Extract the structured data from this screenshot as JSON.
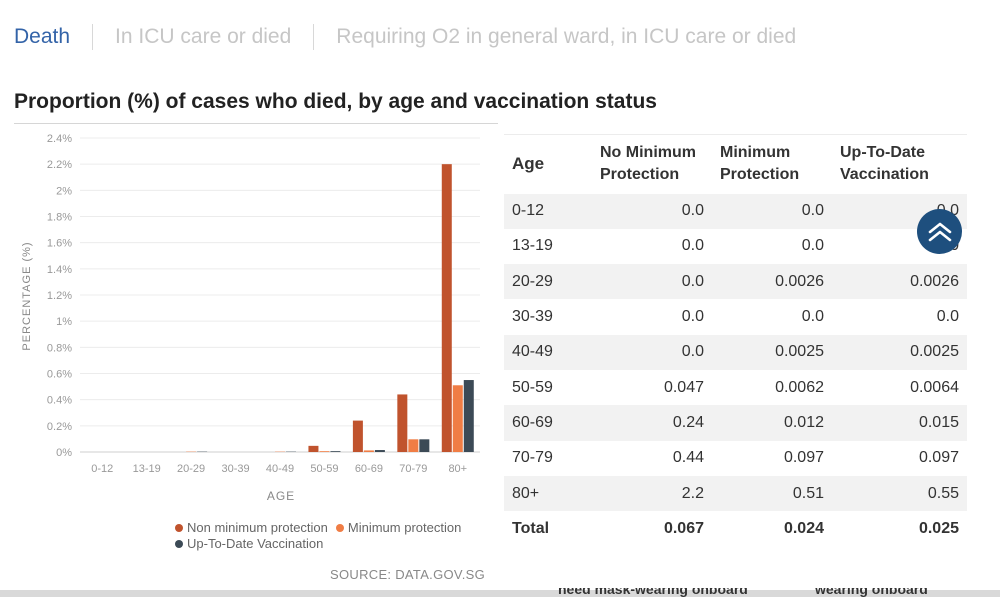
{
  "tabs": [
    {
      "label": "Death",
      "active": true
    },
    {
      "label": "In ICU care or died",
      "active": false
    },
    {
      "label": "Requiring O2 in general ward, in ICU care or died",
      "active": false
    }
  ],
  "title": "Proportion (%) of cases who died, by age and vaccination status",
  "chart_data": {
    "type": "bar",
    "xlabel": "AGE",
    "ylabel": "PERCENTAGE (%)",
    "categories": [
      "0-12",
      "13-19",
      "20-29",
      "30-39",
      "40-49",
      "50-59",
      "60-69",
      "70-79",
      "80+"
    ],
    "yticks": [
      "0%",
      "0.2%",
      "0.4%",
      "0.6%",
      "0.8%",
      "1%",
      "1.2%",
      "1.4%",
      "1.6%",
      "1.8%",
      "2%",
      "2.2%",
      "2.4%"
    ],
    "ylim": [
      0,
      2.4
    ],
    "grid": true,
    "legend_position": "bottom",
    "series": [
      {
        "name": "Non minimum protection",
        "color": "#c0532d",
        "values": [
          0.0,
          0.0,
          0.0,
          0.0,
          0.0,
          0.047,
          0.24,
          0.44,
          2.2
        ]
      },
      {
        "name": "Minimum protection",
        "color": "#f07d45",
        "values": [
          0.0,
          0.0,
          0.0026,
          0.0,
          0.0025,
          0.0062,
          0.012,
          0.097,
          0.51
        ]
      },
      {
        "name": "Up-To-Date Vaccination",
        "color": "#3c4a56",
        "values": [
          0.0,
          0.0,
          0.0026,
          0.0,
          0.0025,
          0.0064,
          0.015,
          0.097,
          0.55
        ]
      }
    ]
  },
  "legend": {
    "non_min": "Non minimum protection",
    "min": "Minimum protection",
    "utd": "Up-To-Date Vaccination"
  },
  "source": "SOURCE: DATA.GOV.SG",
  "table": {
    "headers": {
      "age": "Age",
      "no_min": "No Minimum Protection",
      "min": "Minimum Protection",
      "utd": "Up-To-Date Vaccination"
    },
    "rows": [
      {
        "age": "0-12",
        "no_min": "0.0",
        "min": "0.0",
        "utd": "0.0"
      },
      {
        "age": "13-19",
        "no_min": "0.0",
        "min": "0.0",
        "utd": "0.0"
      },
      {
        "age": "20-29",
        "no_min": "0.0",
        "min": "0.0026",
        "utd": "0.0026"
      },
      {
        "age": "30-39",
        "no_min": "0.0",
        "min": "0.0",
        "utd": "0.0"
      },
      {
        "age": "40-49",
        "no_min": "0.0",
        "min": "0.0025",
        "utd": "0.0025"
      },
      {
        "age": "50-59",
        "no_min": "0.047",
        "min": "0.0062",
        "utd": "0.0064"
      },
      {
        "age": "60-69",
        "no_min": "0.24",
        "min": "0.012",
        "utd": "0.015"
      },
      {
        "age": "70-79",
        "no_min": "0.44",
        "min": "0.097",
        "utd": "0.097"
      },
      {
        "age": "80+",
        "no_min": "2.2",
        "min": "0.51",
        "utd": "0.55"
      }
    ],
    "total": {
      "age": "Total",
      "no_min": "0.067",
      "min": "0.024",
      "utd": "0.025"
    }
  },
  "scroll_top_icon": "chevron-up-icon",
  "bottom_fragments": [
    "need mask-wearing onboard",
    "wearing onboard"
  ]
}
